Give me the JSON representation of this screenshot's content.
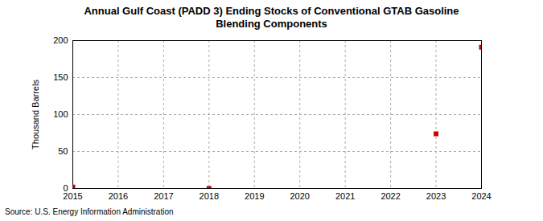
{
  "chart_data": {
    "type": "scatter",
    "title": "Annual Gulf Coast (PADD 3) Ending Stocks of Conventional GTAB Gasoline Blending Components",
    "y_label": "Thousand Barrels",
    "source": "Source: U.S. Energy Information Administration",
    "x": [
      2015,
      2018,
      2023,
      2024
    ],
    "values": [
      2,
      0,
      74,
      191
    ],
    "color": "#cc0000",
    "marker": "square",
    "xlim": [
      2015,
      2024
    ],
    "xticks": [
      2015,
      2016,
      2017,
      2018,
      2019,
      2020,
      2021,
      2022,
      2023,
      2024
    ],
    "ylim": [
      0,
      200
    ],
    "yticks": [
      0,
      50,
      100,
      150,
      200
    ],
    "grid": true
  }
}
